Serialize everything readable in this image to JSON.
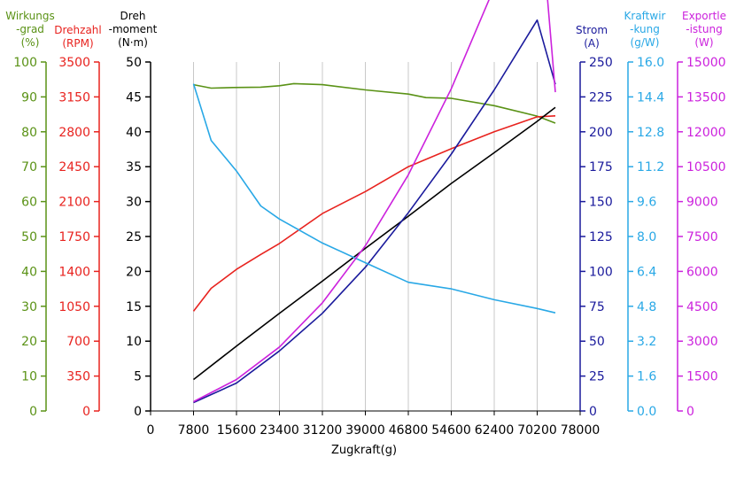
{
  "chart_data": {
    "type": "line",
    "xlabel": "Zugkraft(g)",
    "x_ticks": [
      "0",
      "7800",
      "15600",
      "23400",
      "31200",
      "39000",
      "46800",
      "54600",
      "62400",
      "70200",
      "78000"
    ],
    "xlim": [
      0,
      78000
    ],
    "grid": "vertical",
    "axes": [
      {
        "id": "eff",
        "title": [
          "Wirkungs",
          "-grad",
          "(%)"
        ],
        "color": "#5a9216",
        "side": "left",
        "min": 0,
        "max": 100,
        "ticks": [
          "0",
          "10",
          "20",
          "30",
          "40",
          "50",
          "60",
          "70",
          "80",
          "90",
          "100"
        ]
      },
      {
        "id": "rpm",
        "title": [
          "Drehzahl",
          "(RPM)"
        ],
        "color": "#e8231f",
        "side": "left",
        "min": 0,
        "max": 3500,
        "ticks": [
          "0",
          "350",
          "700",
          "1050",
          "1400",
          "1750",
          "2100",
          "2450",
          "2800",
          "3150",
          "3500"
        ]
      },
      {
        "id": "torque",
        "title": [
          "Dreh",
          "-moment",
          "(N·m)"
        ],
        "color": "#000000",
        "side": "left",
        "min": 0,
        "max": 50,
        "ticks": [
          "0",
          "5",
          "10",
          "15",
          "20",
          "25",
          "30",
          "35",
          "40",
          "45",
          "50"
        ]
      },
      {
        "id": "current",
        "title": [
          "Strom",
          "(A)"
        ],
        "color": "#1a1a9c",
        "side": "right",
        "min": 0,
        "max": 250,
        "ticks": [
          "0",
          "25",
          "50",
          "75",
          "100",
          "125",
          "150",
          "175",
          "200",
          "225",
          "250"
        ]
      },
      {
        "id": "thrusteff",
        "title": [
          "Kraftwir",
          "-kung",
          "(g/W)"
        ],
        "color": "#29a8e6",
        "side": "right",
        "min": 0,
        "max": 16,
        "ticks": [
          "0.0",
          "1.6",
          "3.2",
          "4.8",
          "6.4",
          "8.0",
          "9.6",
          "11.2",
          "12.8",
          "14.4",
          "16.0"
        ]
      },
      {
        "id": "power",
        "title": [
          "Exportle",
          "-istung",
          "(W)"
        ],
        "color": "#cc22dd",
        "side": "right",
        "min": 0,
        "max": 15000,
        "ticks": [
          "0",
          "1500",
          "3000",
          "4500",
          "6000",
          "7500",
          "9000",
          "10500",
          "12000",
          "13500",
          "15000"
        ]
      }
    ],
    "series": [
      {
        "axis": "eff",
        "color": "#5a9216",
        "x": [
          7800,
          11000,
          15000,
          20000,
          23400,
          26000,
          31200,
          39000,
          46800,
          50000,
          54600,
          62400,
          70200,
          73500
        ],
        "y": [
          93.5,
          92.5,
          92.7,
          92.8,
          93.2,
          93.8,
          93.5,
          92.0,
          90.8,
          89.8,
          89.6,
          87.5,
          84.5,
          82.5
        ]
      },
      {
        "axis": "rpm",
        "color": "#e8231f",
        "x": [
          7800,
          11000,
          15600,
          20000,
          23400,
          31200,
          39000,
          46800,
          54600,
          62400,
          70200,
          73500
        ],
        "y": [
          1000,
          1230,
          1420,
          1570,
          1680,
          1980,
          2200,
          2450,
          2630,
          2800,
          2950,
          2960
        ]
      },
      {
        "axis": "torque",
        "color": "#000000",
        "x": [
          7800,
          15600,
          23400,
          31200,
          39000,
          46800,
          54600,
          62400,
          70200,
          73500
        ],
        "y": [
          4.5,
          9.3,
          14.0,
          18.6,
          23.3,
          27.9,
          32.6,
          37.0,
          41.5,
          43.5
        ]
      },
      {
        "axis": "current",
        "color": "#1a1a9c",
        "x": [
          7800,
          15600,
          23400,
          31200,
          39000,
          46800,
          54600,
          62400,
          70200,
          73500
        ],
        "y": [
          6,
          20,
          43,
          70,
          103,
          142,
          184,
          230,
          280,
          234
        ]
      },
      {
        "axis": "thrusteff",
        "color": "#29a8e6",
        "x": [
          7800,
          11000,
          15600,
          20000,
          23400,
          31200,
          39000,
          46800,
          54600,
          62400,
          70200,
          73500
        ],
        "y": [
          15.0,
          12.4,
          11.0,
          9.4,
          8.8,
          7.7,
          6.8,
          5.9,
          5.6,
          5.1,
          4.7,
          4.5
        ]
      },
      {
        "axis": "power",
        "color": "#cc22dd",
        "x": [
          7800,
          15600,
          23400,
          31200,
          39000,
          46800,
          54600,
          62400,
          70200,
          73500
        ],
        "y": [
          400,
          1350,
          2750,
          4650,
          7100,
          10150,
          13850,
          18200,
          23000,
          13700
        ]
      }
    ]
  }
}
